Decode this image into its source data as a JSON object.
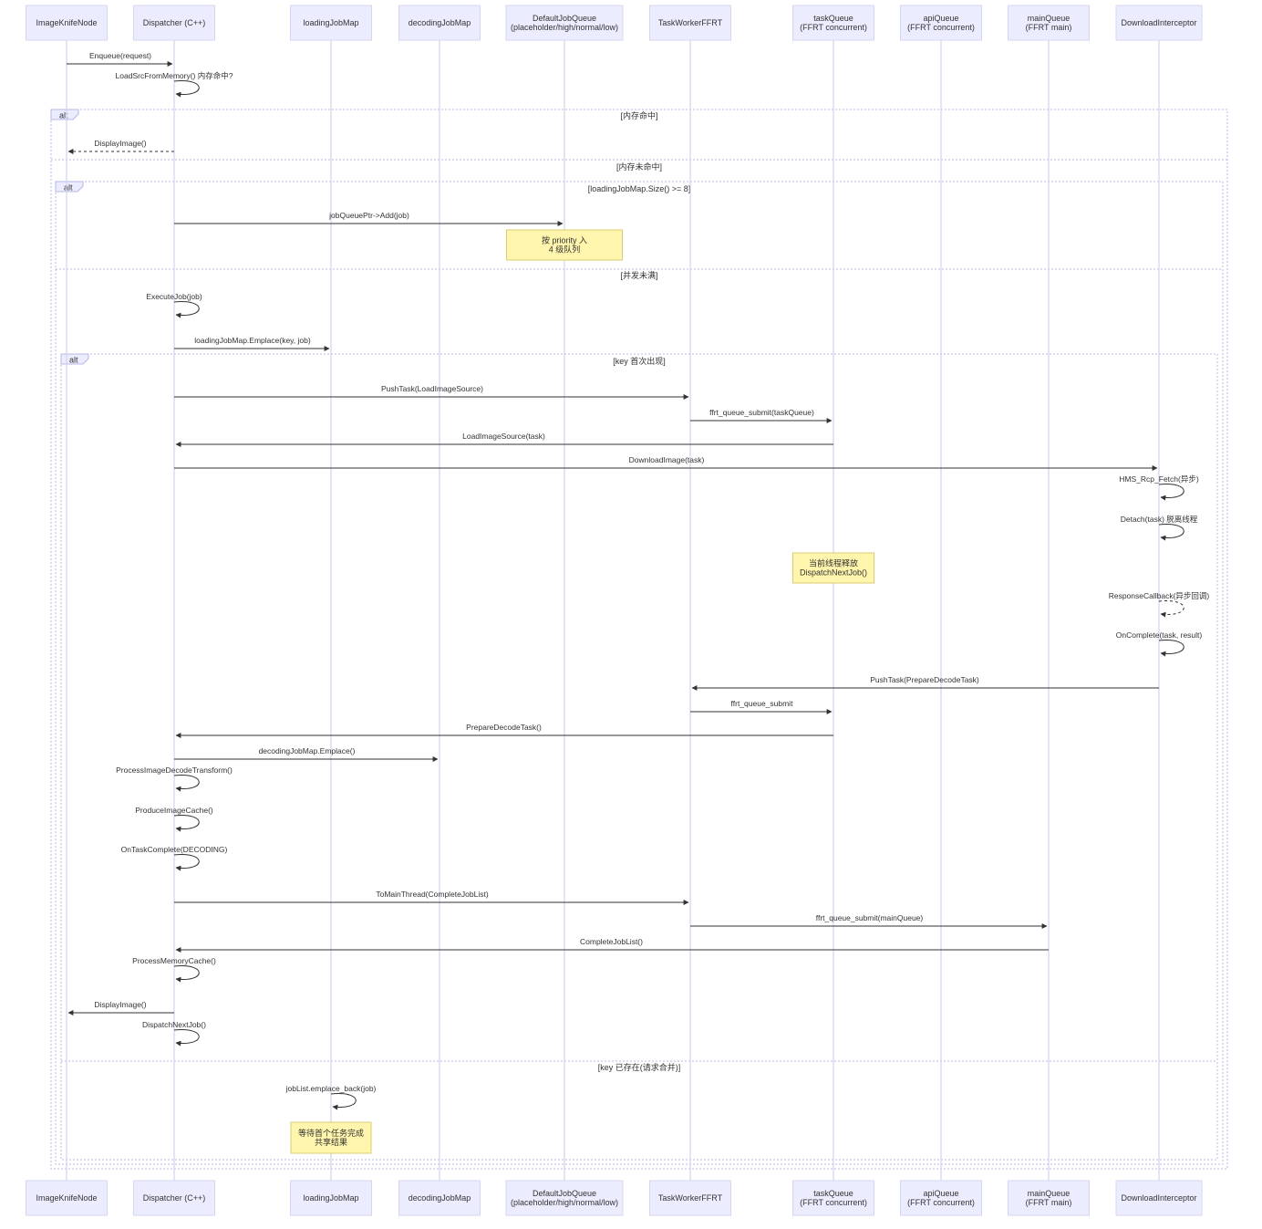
{
  "participants": [
    {
      "id": "node",
      "lines": [
        "ImageKnifeNode"
      ]
    },
    {
      "id": "dispatcher",
      "lines": [
        "Dispatcher (C++)"
      ]
    },
    {
      "id": "loadingJobMap",
      "lines": [
        "loadingJobMap"
      ]
    },
    {
      "id": "decodingJobMap",
      "lines": [
        "decodingJobMap"
      ]
    },
    {
      "id": "defaultJobQueue",
      "lines": [
        "DefaultJobQueue",
        "(placeholder/high/normal/low)"
      ]
    },
    {
      "id": "taskWorker",
      "lines": [
        "TaskWorkerFFRT"
      ]
    },
    {
      "id": "taskQueue",
      "lines": [
        "taskQueue",
        "(FFRT concurrent)"
      ]
    },
    {
      "id": "apiQueue",
      "lines": [
        "apiQueue",
        "(FFRT concurrent)"
      ]
    },
    {
      "id": "mainQueue",
      "lines": [
        "mainQueue",
        "(FFRT main)"
      ]
    },
    {
      "id": "downloadInterceptor",
      "lines": [
        "DownloadInterceptor"
      ]
    }
  ],
  "fragments": [
    {
      "id": "alt-outer",
      "kind": "alt",
      "guards": [
        "[内存命中]",
        "[内存未命中]"
      ]
    },
    {
      "id": "alt-mid",
      "kind": "alt",
      "guards": [
        "[loadingJobMap.Size() >= 8]",
        "[并发未满]"
      ]
    },
    {
      "id": "alt-inner",
      "kind": "alt",
      "guards": [
        "[key 首次出现]",
        "[key 已存在(请求合并)]"
      ]
    }
  ],
  "messages": [
    {
      "from": "node",
      "to": "dispatcher",
      "label": "Enqueue(request)",
      "style": "solid"
    },
    {
      "from": "dispatcher",
      "to": "dispatcher",
      "label": "LoadSrcFromMemory() 内存命中?",
      "style": "solid"
    },
    {
      "from": "dispatcher",
      "to": "node",
      "label": "DisplayImage()",
      "style": "dashed"
    },
    {
      "from": "dispatcher",
      "to": "defaultJobQueue",
      "label": "jobQueuePtr->Add(job)",
      "style": "solid"
    },
    {
      "from": "dispatcher",
      "to": "dispatcher",
      "label": "ExecuteJob(job)",
      "style": "solid"
    },
    {
      "from": "dispatcher",
      "to": "loadingJobMap",
      "label": "loadingJobMap.Emplace(key, job)",
      "style": "solid"
    },
    {
      "from": "dispatcher",
      "to": "taskWorker",
      "label": "PushTask(LoadImageSource)",
      "style": "solid"
    },
    {
      "from": "taskWorker",
      "to": "taskQueue",
      "label": "ffrt_queue_submit(taskQueue)",
      "style": "solid"
    },
    {
      "from": "taskQueue",
      "to": "dispatcher",
      "label": "LoadImageSource(task)",
      "style": "solid"
    },
    {
      "from": "dispatcher",
      "to": "downloadInterceptor",
      "label": "DownloadImage(task)",
      "style": "solid"
    },
    {
      "from": "downloadInterceptor",
      "to": "downloadInterceptor",
      "label": "HMS_Rcp_Fetch(异步)",
      "style": "solid"
    },
    {
      "from": "downloadInterceptor",
      "to": "downloadInterceptor",
      "label": "Detach(task) 脱离线程",
      "style": "solid"
    },
    {
      "from": "downloadInterceptor",
      "to": "downloadInterceptor",
      "label": "ResponseCallback(异步回调)",
      "style": "dashed"
    },
    {
      "from": "downloadInterceptor",
      "to": "downloadInterceptor",
      "label": "OnComplete(task, result)",
      "style": "solid"
    },
    {
      "from": "downloadInterceptor",
      "to": "taskWorker",
      "label": "PushTask(PrepareDecodeTask)",
      "style": "solid"
    },
    {
      "from": "taskWorker",
      "to": "taskQueue",
      "label": "ffrt_queue_submit",
      "style": "solid"
    },
    {
      "from": "taskQueue",
      "to": "dispatcher",
      "label": "PrepareDecodeTask()",
      "style": "solid"
    },
    {
      "from": "dispatcher",
      "to": "decodingJobMap",
      "label": "decodingJobMap.Emplace()",
      "style": "solid"
    },
    {
      "from": "dispatcher",
      "to": "dispatcher",
      "label": "ProcessImageDecodeTransform()",
      "style": "solid"
    },
    {
      "from": "dispatcher",
      "to": "dispatcher",
      "label": "ProduceImageCache()",
      "style": "solid"
    },
    {
      "from": "dispatcher",
      "to": "dispatcher",
      "label": "OnTaskComplete(DECODING)",
      "style": "solid"
    },
    {
      "from": "dispatcher",
      "to": "taskWorker",
      "label": "ToMainThread(CompleteJobList)",
      "style": "solid"
    },
    {
      "from": "taskWorker",
      "to": "mainQueue",
      "label": "ffrt_queue_submit(mainQueue)",
      "style": "solid"
    },
    {
      "from": "mainQueue",
      "to": "dispatcher",
      "label": "CompleteJobList()",
      "style": "solid"
    },
    {
      "from": "dispatcher",
      "to": "dispatcher",
      "label": "ProcessMemoryCache()",
      "style": "solid"
    },
    {
      "from": "dispatcher",
      "to": "node",
      "label": "DisplayImage()",
      "style": "solid"
    },
    {
      "from": "dispatcher",
      "to": "dispatcher",
      "label": "DispatchNextJob()",
      "style": "solid"
    },
    {
      "from": "loadingJobMap",
      "to": "loadingJobMap",
      "label": "jobList.emplace_back(job)",
      "style": "solid"
    }
  ],
  "notes": [
    {
      "over": "defaultJobQueue",
      "lines": [
        "按 priority 入",
        "4 级队列"
      ]
    },
    {
      "over": "taskQueue",
      "lines": [
        "当前线程释放",
        "DispatchNextJob()"
      ]
    },
    {
      "over": "loadingJobMap",
      "lines": [
        "等待首个任务完成",
        "共享结果"
      ]
    }
  ],
  "colors": {
    "actor_fill": "#ECECFF",
    "actor_stroke": "#d6d6f2",
    "lifeline": "#d3d3ee",
    "note_fill": "#FFF5AD",
    "note_stroke": "#d8cd73",
    "frame_stroke": "#b7b7e6",
    "text": "#333333"
  }
}
